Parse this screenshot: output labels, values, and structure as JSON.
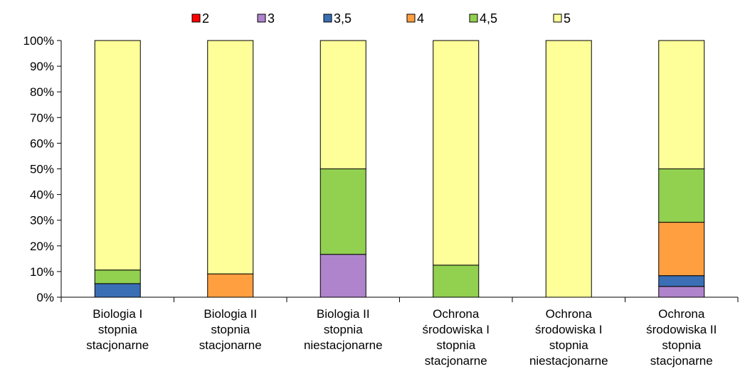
{
  "chart_data": {
    "type": "bar",
    "stacked": true,
    "percent": true,
    "categories": [
      [
        "Biologia I",
        "stopnia",
        "stacjonarne"
      ],
      [
        "Biologia II",
        "stopnia",
        "stacjonarne"
      ],
      [
        "Biologia II",
        "stopnia",
        "niestacjonarne"
      ],
      [
        "Ochrona",
        "środowiska I",
        "stopnia",
        "stacjonarne"
      ],
      [
        "Ochrona",
        "środowiska I",
        "stopnia",
        "niestacjonarne"
      ],
      [
        "Ochrona",
        "środowiska II",
        "stopnia",
        "stacjonarne"
      ]
    ],
    "series": [
      {
        "name": "2",
        "color": "#ff0000",
        "values": [
          0,
          0,
          0,
          0,
          0,
          0
        ]
      },
      {
        "name": "3",
        "color": "#b084cc",
        "values": [
          0,
          0,
          16.7,
          0,
          0,
          4.2
        ]
      },
      {
        "name": "3,5",
        "color": "#3a6fb5",
        "values": [
          5.3,
          0,
          0,
          0,
          0,
          4.2
        ]
      },
      {
        "name": "4",
        "color": "#ff9f40",
        "values": [
          0,
          9.1,
          0,
          0,
          0,
          20.8
        ]
      },
      {
        "name": "4,5",
        "color": "#92d050",
        "values": [
          5.3,
          0,
          33.3,
          12.5,
          0,
          20.8
        ]
      },
      {
        "name": "5",
        "color": "#ffff99",
        "values": [
          89.4,
          90.9,
          50.0,
          87.5,
          100,
          50.0
        ]
      }
    ],
    "y_ticks": [
      "0%",
      "10%",
      "20%",
      "30%",
      "40%",
      "50%",
      "60%",
      "70%",
      "80%",
      "90%",
      "100%"
    ],
    "ylim": [
      0,
      100
    ],
    "legend_position": "top",
    "grid": false
  }
}
